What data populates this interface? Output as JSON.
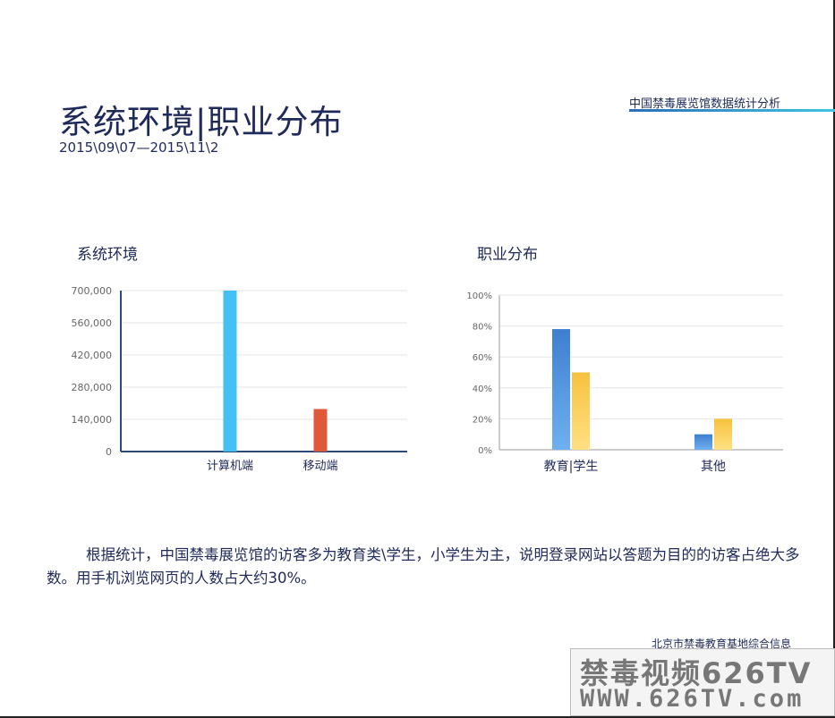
{
  "header": {
    "title": "系统环境|职业分布",
    "date_range": "2015\\09\\07—2015\\11\\2",
    "org_title": "中国禁毒展览馆数据统计分析"
  },
  "colors": {
    "accent": "#3fc4e0",
    "text": "#1f2a5a",
    "pc_bar": "#45c0f2",
    "mobile_bar": "#e05a3a",
    "student_bar": "#3e7fd0",
    "student_bar2": "#f6c23e"
  },
  "chart_data": [
    {
      "type": "bar",
      "title": "系统环境",
      "categories": [
        "计算机端",
        "移动端"
      ],
      "values": [
        700000,
        185000
      ],
      "ylim": [
        0,
        700000
      ],
      "yticks": [
        "0",
        "140,000",
        "280,000",
        "420,000",
        "560,000",
        "700,000"
      ],
      "ytick_values": [
        0,
        140000,
        280000,
        420000,
        560000,
        700000
      ],
      "grid": true
    },
    {
      "type": "bar",
      "title": "职业分布",
      "categories": [
        "教育|学生",
        "其他"
      ],
      "series": [
        {
          "values": [
            78,
            10
          ]
        },
        {
          "values": [
            50,
            20
          ]
        }
      ],
      "ylim": [
        0,
        100
      ],
      "yticks": [
        "0%",
        "20%",
        "40%",
        "60%",
        "80%",
        "100%"
      ],
      "ytick_values": [
        0,
        20,
        40,
        60,
        80,
        100
      ],
      "grid": true
    }
  ],
  "summary": {
    "text": "根据统计，中国禁毒展览馆的访客多为教育类\\学生，小学生为主，说明登录网站以答题为目的的访客占绝大多数。用手机浏览网页的人数占大约30%。"
  },
  "footer": {
    "org": "北京市禁毒教育基地综合信息"
  },
  "watermark": {
    "line1": "禁毒视频626TV",
    "line2": "WWW.626TV.com"
  }
}
